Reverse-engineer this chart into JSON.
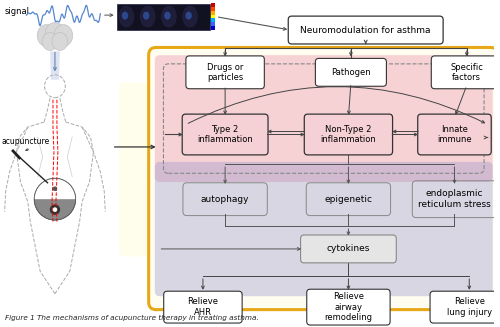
{
  "title": "Figure 1 The mechanisms of acupuncture therapy in treating asthma.",
  "bg_color": "#ffffff",
  "signal_text": "signal",
  "neuromod_text": "Neuromodulation for asthma",
  "box1_text": "Drugs or\nparticles",
  "box2_text": "Pathogen",
  "box3_text": "Specific\nfactors",
  "inflammation1_text": "Type 2\ninflammation",
  "inflammation2_text": "Non-Type 2\ninflammation",
  "innate_text": "Innate\nimmune",
  "autophagy_text": "autophagy",
  "epigenetic_text": "epigenetic",
  "er_stress_text": "endoplasmic\nreticulum stress",
  "cytokines_text": "cytokines",
  "relieve1_text": "Relieve\nAHR",
  "relieve2_text": "Relieve\nairway\nremodeling",
  "relieve3_text": "Relieve\nlung injury",
  "acupuncture_text": "acupuncture",
  "outer_box_color": "#e6a817",
  "pink_bg_color": "#e8a0b0",
  "blue_bg_color": "#9090cc",
  "arrow_color": "#444444",
  "box_edge_color": "#222222",
  "dashed_box_color": "#777777",
  "caption_color": "#222222"
}
